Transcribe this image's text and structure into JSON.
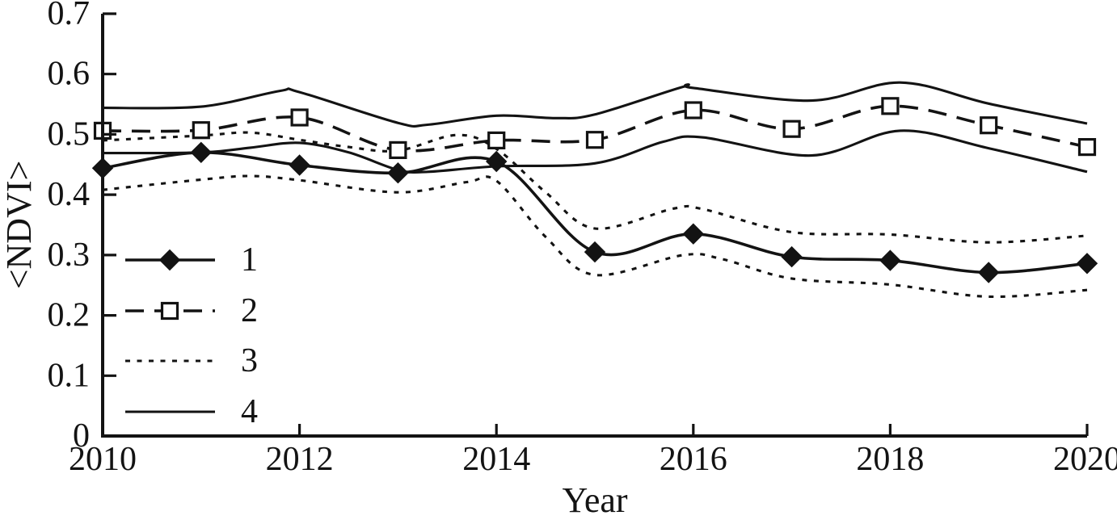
{
  "colors": {
    "ink": "#131313",
    "background": "#ffffff"
  },
  "chart_data": {
    "type": "line",
    "title": "",
    "xlabel": "Year",
    "ylabel": "<NDVI>",
    "xlim": [
      2010,
      2020
    ],
    "ylim": [
      0,
      0.7
    ],
    "grid": false,
    "frame": "L-shaped-axes",
    "xticks": {
      "values": [
        2010,
        2012,
        2014,
        2016,
        2018,
        2020
      ],
      "labels": [
        "2010",
        "2012",
        "2014",
        "2016",
        "2018",
        "2020"
      ]
    },
    "yticks": {
      "values": [
        0,
        0.1,
        0.2,
        0.3,
        0.4,
        0.5,
        0.6,
        0.7
      ],
      "labels": [
        "0",
        "0.1",
        "0.2",
        "0.3",
        "0.4",
        "0.5",
        "0.6",
        "0.7"
      ]
    },
    "legend": {
      "position": "inside-lower-left",
      "items": [
        {
          "label": "1",
          "line": "solid",
          "marker": "filled-diamond"
        },
        {
          "label": "2",
          "line": "dashed",
          "marker": "open-square"
        },
        {
          "label": "3",
          "line": "dotted",
          "marker": "none"
        },
        {
          "label": "4",
          "line": "solid",
          "marker": "none"
        }
      ]
    },
    "series": [
      {
        "id": "series-4-upper",
        "legend_label": "4",
        "line": "solid",
        "marker": "none",
        "x": [
          2010,
          2011,
          2011.8,
          2012,
          2013,
          2013.3,
          2014,
          2014.6,
          2015,
          2015.9,
          2016,
          2017.2,
          2018.1,
          2019,
          2020
        ],
        "y": [
          0.544,
          0.546,
          0.572,
          0.57,
          0.519,
          0.516,
          0.531,
          0.527,
          0.533,
          0.579,
          0.577,
          0.556,
          0.586,
          0.551,
          0.518
        ]
      },
      {
        "id": "series-4-lower",
        "legend_label": "4",
        "line": "solid",
        "marker": "none",
        "x": [
          2010,
          2011,
          2011.5,
          2012,
          2012.5,
          2013,
          2013.3,
          2014,
          2015,
          2015.7,
          2016.1,
          2017.2,
          2018.1,
          2019,
          2020
        ],
        "y": [
          0.469,
          0.47,
          0.478,
          0.486,
          0.47,
          0.441,
          0.438,
          0.447,
          0.452,
          0.488,
          0.495,
          0.465,
          0.506,
          0.477,
          0.438
        ]
      },
      {
        "id": "series-3-upper",
        "legend_label": "3",
        "line": "dotted",
        "marker": "none",
        "x": [
          2010,
          2011,
          2011.5,
          2012,
          2012.5,
          2013,
          2013.6,
          2014,
          2014.5,
          2015,
          2015.8,
          2016.1,
          2017,
          2018,
          2019,
          2020
        ],
        "y": [
          0.49,
          0.498,
          0.503,
          0.491,
          0.479,
          0.473,
          0.499,
          0.476,
          0.404,
          0.344,
          0.377,
          0.376,
          0.338,
          0.334,
          0.321,
          0.332
        ]
      },
      {
        "id": "series-3-lower",
        "legend_label": "3",
        "line": "dotted",
        "marker": "none",
        "x": [
          2010,
          2011,
          2011.5,
          2012,
          2013,
          2013.7,
          2014,
          2014.5,
          2015,
          2015.9,
          2016.3,
          2017,
          2018,
          2019,
          2020
        ],
        "y": [
          0.408,
          0.425,
          0.431,
          0.424,
          0.404,
          0.421,
          0.423,
          0.33,
          0.267,
          0.3,
          0.293,
          0.261,
          0.251,
          0.231,
          0.242
        ]
      },
      {
        "id": "series-2",
        "legend_label": "2",
        "line": "dashed",
        "marker": "open-square",
        "x": [
          2010,
          2011,
          2012,
          2013,
          2014,
          2015,
          2016,
          2017,
          2018,
          2019,
          2020
        ],
        "y": [
          0.506,
          0.507,
          0.528,
          0.474,
          0.49,
          0.491,
          0.54,
          0.509,
          0.547,
          0.515,
          0.479
        ]
      },
      {
        "id": "series-1",
        "legend_label": "1",
        "line": "solid",
        "marker": "filled-diamond",
        "x": [
          2010,
          2011,
          2012,
          2013,
          2014,
          2015,
          2016,
          2017,
          2018,
          2019,
          2020
        ],
        "y": [
          0.444,
          0.47,
          0.449,
          0.436,
          0.455,
          0.305,
          0.335,
          0.297,
          0.291,
          0.271,
          0.286
        ]
      }
    ]
  }
}
